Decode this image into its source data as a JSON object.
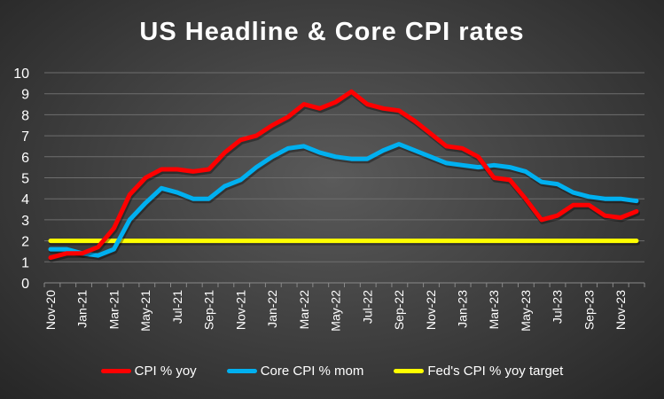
{
  "chart_data": {
    "type": "line",
    "title": "US Headline & Core CPI rates",
    "xlabel": "",
    "ylabel": "",
    "ylim": [
      0,
      10
    ],
    "yticks": [
      "0",
      "1",
      "2",
      "3",
      "4",
      "5",
      "6",
      "7",
      "8",
      "9",
      "10"
    ],
    "grid": true,
    "legend_position": "bottom",
    "categories": [
      "Nov-20",
      "Dec-20",
      "Jan-21",
      "Feb-21",
      "Mar-21",
      "Apr-21",
      "May-21",
      "Jun-21",
      "Jul-21",
      "Aug-21",
      "Sep-21",
      "Oct-21",
      "Nov-21",
      "Dec-21",
      "Jan-22",
      "Feb-22",
      "Mar-22",
      "Apr-22",
      "May-22",
      "Jun-22",
      "Jul-22",
      "Aug-22",
      "Sep-22",
      "Oct-22",
      "Nov-22",
      "Dec-22",
      "Jan-23",
      "Feb-23",
      "Mar-23",
      "Apr-23",
      "May-23",
      "Jun-23",
      "Jul-23",
      "Aug-23",
      "Sep-23",
      "Oct-23",
      "Nov-23",
      "Dec-23"
    ],
    "xtick_labels": [
      "Nov-20",
      "Jan-21",
      "Mar-21",
      "May-21",
      "Jul-21",
      "Sep-21",
      "Nov-21",
      "Jan-22",
      "Mar-22",
      "May-22",
      "Jul-22",
      "Sep-22",
      "Nov-22",
      "Jan-23",
      "Mar-23",
      "May-23",
      "Jul-23",
      "Sep-23",
      "Nov-23"
    ],
    "series": [
      {
        "name": "CPI % yoy",
        "color": "#ff0000",
        "values": [
          1.2,
          1.4,
          1.4,
          1.7,
          2.6,
          4.2,
          5.0,
          5.4,
          5.4,
          5.3,
          5.4,
          6.2,
          6.8,
          7.0,
          7.5,
          7.9,
          8.5,
          8.3,
          8.6,
          9.1,
          8.5,
          8.3,
          8.2,
          7.7,
          7.1,
          6.5,
          6.4,
          6.0,
          5.0,
          4.9,
          4.0,
          3.0,
          3.2,
          3.7,
          3.7,
          3.2,
          3.1,
          3.4
        ]
      },
      {
        "name": "Core CPI % mom",
        "color": "#00b0f0",
        "values": [
          1.6,
          1.6,
          1.4,
          1.3,
          1.6,
          3.0,
          3.8,
          4.5,
          4.3,
          4.0,
          4.0,
          4.6,
          4.9,
          5.5,
          6.0,
          6.4,
          6.5,
          6.2,
          6.0,
          5.9,
          5.9,
          6.3,
          6.6,
          6.3,
          6.0,
          5.7,
          5.6,
          5.5,
          5.6,
          5.5,
          5.3,
          4.8,
          4.7,
          4.3,
          4.1,
          4.0,
          4.0,
          3.9
        ]
      },
      {
        "name": "Fed's CPI % yoy target",
        "color": "#ffff00",
        "values": [
          2,
          2,
          2,
          2,
          2,
          2,
          2,
          2,
          2,
          2,
          2,
          2,
          2,
          2,
          2,
          2,
          2,
          2,
          2,
          2,
          2,
          2,
          2,
          2,
          2,
          2,
          2,
          2,
          2,
          2,
          2,
          2,
          2,
          2,
          2,
          2,
          2,
          2
        ]
      }
    ]
  }
}
